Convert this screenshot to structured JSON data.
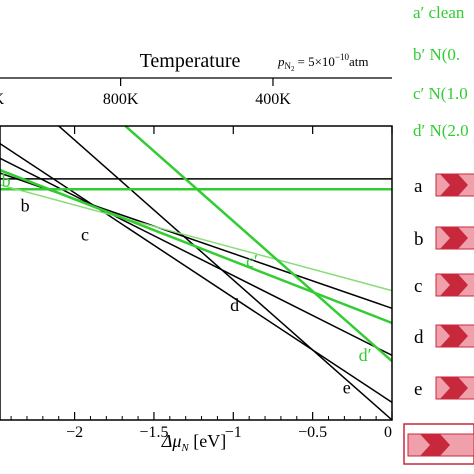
{
  "chart_data": {
    "type": "line",
    "title": "",
    "top_axis": {
      "title": "Temperature",
      "condition": {
        "symbol": "p",
        "subscript": "N",
        "subsubscript": "2",
        "equals": "= 5×10",
        "exponent": "−10",
        "unit": "atm"
      },
      "ticks": [
        {
          "label": "K",
          "delta_mu": -2.48
        },
        {
          "label": "800K",
          "delta_mu": -1.71
        },
        {
          "label": "400K",
          "delta_mu": -0.75
        }
      ]
    },
    "xlabel": {
      "main": "Δμ",
      "sub": "N",
      "unit": " [eV]"
    },
    "ylabel": "",
    "xlim": [
      -2.47,
      0.0
    ],
    "ylim": [
      0.0,
      1.0
    ],
    "x_ticks": [
      {
        "value": -2.0,
        "label": "−2"
      },
      {
        "value": -1.5,
        "label": "−1.5"
      },
      {
        "value": -1.0,
        "label": "−1"
      },
      {
        "value": -0.5,
        "label": "−0.5"
      },
      {
        "value": 0.0,
        "label": "0"
      }
    ],
    "series": [
      {
        "name": "a",
        "color": "#000000",
        "width": 1.5,
        "x": [
          -2.47,
          0.0
        ],
        "y": [
          0.82,
          0.82
        ]
      },
      {
        "name": "b",
        "color": "#000000",
        "width": 1.5,
        "x": [
          -2.47,
          0.0
        ],
        "y": [
          0.84,
          0.38
        ]
      },
      {
        "name": "c",
        "color": "#000000",
        "width": 1.5,
        "x": [
          -2.47,
          0.0
        ],
        "y": [
          0.89,
          0.22
        ]
      },
      {
        "name": "d",
        "color": "#000000",
        "width": 1.5,
        "x": [
          -2.47,
          0.0
        ],
        "y": [
          0.94,
          0.06
        ]
      },
      {
        "name": "e",
        "color": "#000000",
        "width": 1.5,
        "x": [
          -2.1,
          0.0
        ],
        "y": [
          1.0,
          0.0
        ]
      },
      {
        "name": "a′",
        "color": "#33cc33",
        "width": 2.5,
        "x": [
          -2.47,
          0.0
        ],
        "y": [
          0.785,
          0.785
        ]
      },
      {
        "name": "b′",
        "color": "#88dd77",
        "width": 1.5,
        "x": [
          -2.47,
          0.0
        ],
        "y": [
          0.8,
          0.44
        ]
      },
      {
        "name": "c′",
        "color": "#33cc33",
        "width": 2.5,
        "x": [
          -2.47,
          0.0
        ],
        "y": [
          0.85,
          0.33
        ]
      },
      {
        "name": "d′",
        "color": "#33cc33",
        "width": 2.5,
        "x": [
          -1.68,
          0.0
        ],
        "y": [
          1.0,
          0.2
        ]
      }
    ],
    "curve_labels": [
      {
        "text": "b",
        "color": "#33cc33",
        "x": -2.46,
        "y": 0.795
      },
      {
        "text": "b",
        "color": "#000000",
        "x": -2.34,
        "y": 0.71
      },
      {
        "text": "c",
        "color": "#000000",
        "x": -1.96,
        "y": 0.61
      },
      {
        "text": "c′",
        "color": "#33cc33",
        "x": -0.92,
        "y": 0.52
      },
      {
        "text": "d",
        "color": "#000000",
        "x": -1.02,
        "y": 0.37
      },
      {
        "text": "d′",
        "color": "#33cc33",
        "x": -0.21,
        "y": 0.2
      },
      {
        "text": "e",
        "color": "#000000",
        "x": -0.31,
        "y": 0.09
      }
    ],
    "legend": {
      "placement": "right",
      "text_items": [
        {
          "text": "a′ clean",
          "color": "#33cc33"
        },
        {
          "text": "b′ N(0.",
          "color": "#33cc33"
        },
        {
          "text": "c′ N(1.0",
          "color": "#33cc33"
        },
        {
          "text": "d′ N(2.0",
          "color": "#33cc33"
        }
      ],
      "marker_items": [
        {
          "text": "a"
        },
        {
          "text": "b"
        },
        {
          "text": "c"
        },
        {
          "text": "d"
        },
        {
          "text": "e"
        }
      ],
      "marker_colors": {
        "dark": "#c8283c",
        "light": "#f0a0aa"
      }
    }
  }
}
